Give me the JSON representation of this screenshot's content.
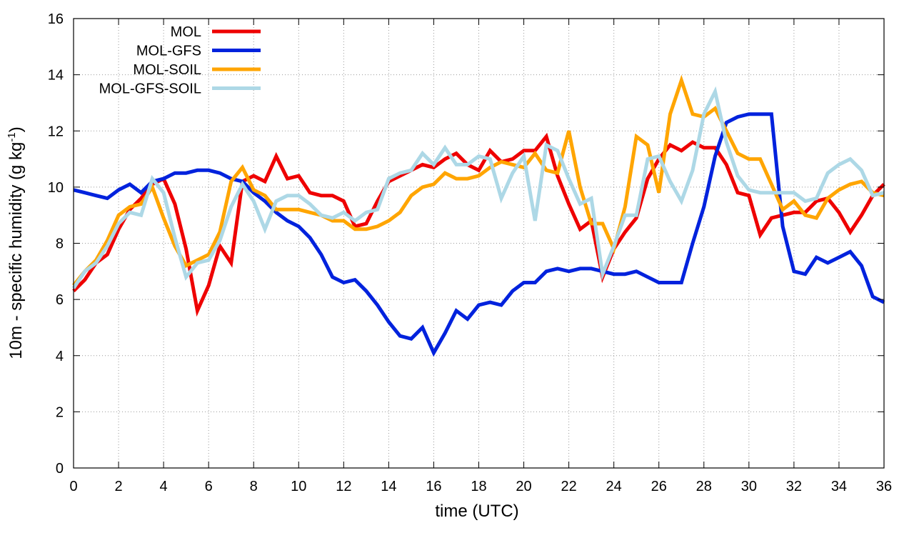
{
  "chart_data": {
    "type": "line",
    "xlabel": "time (UTC)",
    "ylabel_main": "10m - specific humidity (g kg",
    "ylabel_sup": "-1",
    "ylabel_tail": ")",
    "xlim": [
      0,
      36
    ],
    "ylim": [
      0,
      16
    ],
    "xticks": [
      0,
      2,
      4,
      6,
      8,
      10,
      12,
      14,
      16,
      18,
      20,
      22,
      24,
      26,
      28,
      30,
      32,
      34,
      36
    ],
    "yticks": [
      0,
      2,
      4,
      6,
      8,
      10,
      12,
      14,
      16
    ],
    "grid": true,
    "legend_position": "top-left",
    "x": [
      0,
      0.5,
      1,
      1.5,
      2,
      2.5,
      3,
      3.5,
      4,
      4.5,
      5,
      5.5,
      6,
      6.5,
      7,
      7.5,
      8,
      8.5,
      9,
      9.5,
      10,
      10.5,
      11,
      11.5,
      12,
      12.5,
      13,
      13.5,
      14,
      14.5,
      15,
      15.5,
      16,
      16.5,
      17,
      17.5,
      18,
      18.5,
      19,
      19.5,
      20,
      20.5,
      21,
      21.5,
      22,
      22.5,
      23,
      23.5,
      24,
      24.5,
      25,
      25.5,
      26,
      26.5,
      27,
      27.5,
      28,
      28.5,
      29,
      29.5,
      30,
      30.5,
      31,
      31.5,
      32,
      32.5,
      33,
      33.5,
      34,
      34.5,
      35,
      35.5,
      36
    ],
    "series": [
      {
        "name": "MOL",
        "color": "#ee0000",
        "values": [
          6.3,
          6.7,
          7.3,
          7.6,
          8.5,
          9.2,
          9.6,
          10.1,
          10.3,
          9.4,
          7.8,
          5.6,
          6.5,
          7.9,
          7.3,
          10.2,
          10.4,
          10.2,
          11.1,
          10.3,
          10.4,
          9.8,
          9.7,
          9.7,
          9.5,
          8.6,
          8.7,
          9.5,
          10.2,
          10.4,
          10.6,
          10.8,
          10.7,
          11.0,
          11.2,
          10.8,
          10.6,
          11.3,
          10.9,
          11.0,
          11.3,
          11.3,
          11.8,
          10.4,
          9.4,
          8.5,
          8.8,
          6.8,
          7.8,
          8.4,
          8.9,
          10.3,
          11.0,
          11.5,
          11.3,
          11.6,
          11.4,
          11.4,
          10.8,
          9.8,
          9.7,
          8.3,
          8.9,
          9.0,
          9.1,
          9.1,
          9.5,
          9.6,
          9.1,
          8.4,
          9.0,
          9.7,
          10.1
        ]
      },
      {
        "name": "MOL-GFS",
        "color": "#0022dd",
        "values": [
          9.9,
          9.8,
          9.7,
          9.6,
          9.9,
          10.1,
          9.8,
          10.2,
          10.3,
          10.5,
          10.5,
          10.6,
          10.6,
          10.5,
          10.3,
          10.2,
          9.8,
          9.5,
          9.1,
          8.8,
          8.6,
          8.2,
          7.6,
          6.8,
          6.6,
          6.7,
          6.3,
          5.8,
          5.2,
          4.7,
          4.6,
          5.0,
          4.1,
          4.8,
          5.6,
          5.3,
          5.8,
          5.9,
          5.8,
          6.3,
          6.6,
          6.6,
          7.0,
          7.1,
          7.0,
          7.1,
          7.1,
          7.0,
          6.9,
          6.9,
          7.0,
          6.8,
          6.6,
          6.6,
          6.6,
          8.0,
          9.3,
          11.1,
          12.3,
          12.5,
          12.6,
          12.6,
          12.6,
          8.6,
          7.0,
          6.9,
          7.5,
          7.3,
          7.5,
          7.7,
          7.2,
          6.1,
          5.9
        ]
      },
      {
        "name": "MOL-SOIL",
        "color": "#ffa500",
        "values": [
          6.5,
          7.0,
          7.4,
          8.1,
          9.0,
          9.3,
          9.4,
          10.0,
          8.9,
          7.9,
          7.2,
          7.4,
          7.6,
          8.4,
          10.2,
          10.7,
          9.9,
          9.7,
          9.2,
          9.2,
          9.2,
          9.1,
          9.0,
          8.8,
          8.8,
          8.5,
          8.5,
          8.6,
          8.8,
          9.1,
          9.7,
          10.0,
          10.1,
          10.5,
          10.3,
          10.3,
          10.4,
          10.7,
          10.9,
          10.8,
          10.7,
          11.2,
          10.6,
          10.5,
          12.0,
          10.0,
          8.7,
          8.7,
          7.8,
          9.3,
          11.8,
          11.5,
          9.8,
          12.6,
          13.8,
          12.6,
          12.5,
          12.8,
          12.0,
          11.2,
          11.0,
          11.0,
          10.1,
          9.2,
          9.5,
          9.0,
          8.9,
          9.6,
          9.9,
          10.1,
          10.2,
          9.8,
          9.7
        ]
      },
      {
        "name": "MOL-GFS-SOIL",
        "color": "#add8e6",
        "values": [
          6.4,
          7.0,
          7.3,
          7.9,
          8.7,
          9.1,
          9.0,
          10.3,
          9.8,
          8.2,
          6.8,
          7.3,
          7.4,
          8.1,
          9.3,
          10.1,
          9.5,
          8.5,
          9.5,
          9.7,
          9.7,
          9.4,
          9.0,
          8.9,
          9.1,
          8.8,
          9.1,
          9.2,
          10.3,
          10.5,
          10.6,
          11.2,
          10.8,
          11.4,
          10.8,
          10.8,
          11.1,
          11.0,
          9.6,
          10.5,
          11.1,
          8.8,
          11.5,
          11.3,
          10.3,
          9.4,
          9.6,
          6.9,
          7.9,
          9.0,
          9.0,
          11.0,
          11.1,
          10.2,
          9.5,
          10.6,
          12.6,
          13.4,
          11.6,
          10.4,
          9.9,
          9.8,
          9.8,
          9.8,
          9.8,
          9.5,
          9.6,
          10.5,
          10.8,
          11.0,
          10.6,
          9.7,
          9.8
        ]
      }
    ]
  }
}
